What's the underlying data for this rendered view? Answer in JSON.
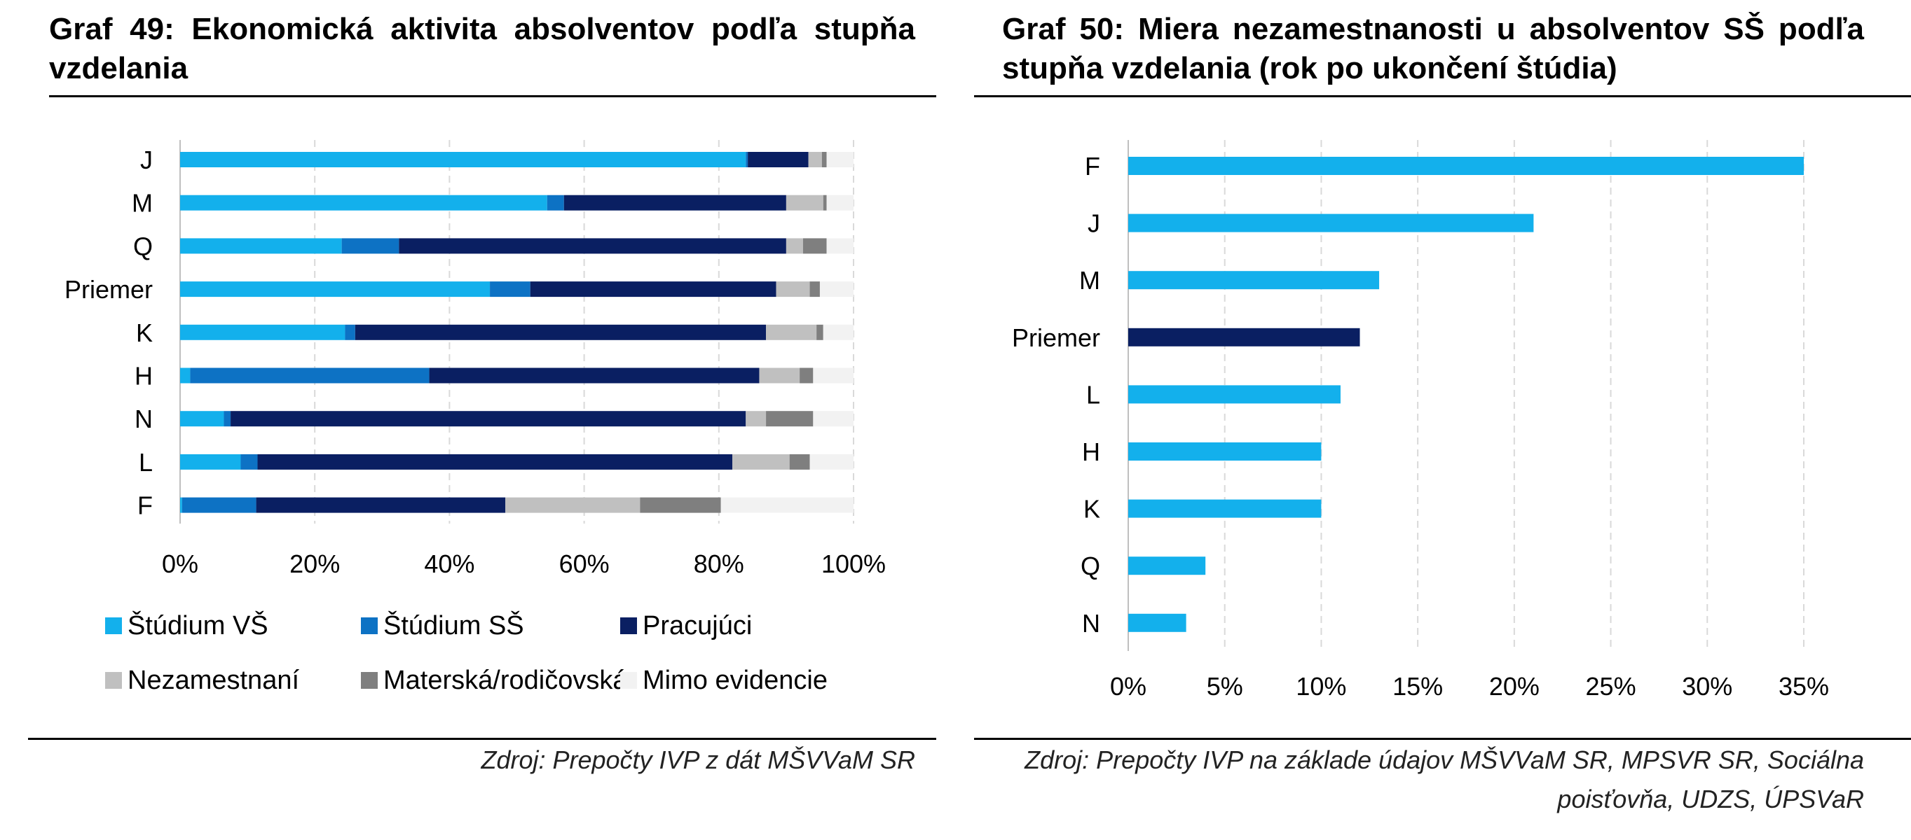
{
  "charts": {
    "left": {
      "title": "Graf 49: Ekonomická aktivita absolventov podľa stupňa vzdelania",
      "source": "Zdroj: Prepočty IVP z dát MŠVVaM SR"
    },
    "right": {
      "title": "Graf 50: Miera nezamestnanosti u absolventov SŠ podľa stupňa vzdelania (rok po ukončení štúdia)",
      "source": "Zdroj: Prepočty IVP na základe údajov MŠVVaM SR, MPSVR SR, Sociálna poisťovňa, UDZS, ÚPSVaR"
    }
  },
  "chart_data": [
    {
      "type": "bar",
      "orientation": "horizontal",
      "stacked": true,
      "title": "Graf 49: Ekonomická aktivita absolventov podľa stupňa vzdelania",
      "categories": [
        "J",
        "M",
        "Q",
        "Priemer",
        "K",
        "H",
        "N",
        "L",
        "F"
      ],
      "series": [
        {
          "name": "Štúdium VŠ",
          "color": "#13b0ec",
          "values": [
            84,
            54.5,
            24,
            46,
            24.5,
            1.5,
            6.5,
            9,
            0.3
          ]
        },
        {
          "name": "Štúdium SŠ",
          "color": "#0d72c4",
          "values": [
            0.3,
            2.5,
            8.5,
            6,
            1.5,
            35.5,
            1,
            2.5,
            11
          ]
        },
        {
          "name": "Pracujúci",
          "color": "#0a1f62",
          "values": [
            9,
            33,
            57.5,
            36.5,
            61,
            49,
            76.5,
            70.5,
            37
          ]
        },
        {
          "name": "Nezamestnaní",
          "color": "#c0c0c0",
          "values": [
            2,
            5.5,
            2.5,
            5,
            7.5,
            6,
            3,
            8.5,
            20
          ]
        },
        {
          "name": "Materská/rodičovská",
          "color": "#7f7f7f",
          "values": [
            0.7,
            0.5,
            3.5,
            1.5,
            1,
            2,
            7,
            3,
            12
          ]
        },
        {
          "name": "Mimo evidencie",
          "color": "#f2f2f2",
          "values": [
            4,
            4,
            4,
            5,
            4.5,
            6,
            6,
            6.5,
            19.7
          ]
        }
      ],
      "x_ticks": [
        "0%",
        "20%",
        "40%",
        "60%",
        "80%",
        "100%"
      ],
      "xlim": [
        0,
        100
      ],
      "grid": true,
      "legend_position": "bottom"
    },
    {
      "type": "bar",
      "orientation": "horizontal",
      "title": "Graf 50: Miera nezamestnanosti u absolventov SŠ podľa stupňa vzdelania (rok po ukončení štúdia)",
      "categories": [
        "F",
        "J",
        "M",
        "Priemer",
        "L",
        "H",
        "K",
        "Q",
        "N"
      ],
      "values": [
        35,
        21,
        13,
        12,
        11,
        10,
        10,
        4,
        3
      ],
      "colors": {
        "default": "#13b0ec",
        "highlight": "#0a1f62",
        "highlight_category": "Priemer"
      },
      "x_ticks": [
        "0%",
        "5%",
        "10%",
        "15%",
        "20%",
        "25%",
        "30%",
        "35%"
      ],
      "xlim": [
        0,
        35
      ],
      "grid": true
    }
  ]
}
